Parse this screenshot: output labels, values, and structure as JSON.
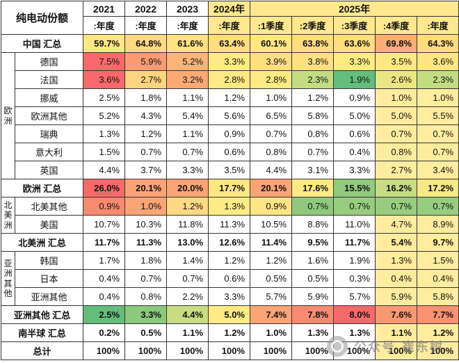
{
  "corner_label": "纯电动份额",
  "columns": {
    "year_groups": [
      {
        "label": "2021",
        "span": 1,
        "bg": "#FFFFFF"
      },
      {
        "label": "2022",
        "span": 1,
        "bg": "#FFFFFF"
      },
      {
        "label": "2023",
        "span": 1,
        "bg": "#FFFFFF"
      },
      {
        "label": "2024年",
        "span": 1,
        "bg": "#FFE88E"
      },
      {
        "label": "2025年",
        "span": 5,
        "bg": "#FFE88E"
      }
    ],
    "periods": [
      {
        "label": ":年度",
        "bg": "#FFFFFF"
      },
      {
        "label": ":年度",
        "bg": "#FFFFFF"
      },
      {
        "label": ":年度",
        "bg": "#FFFFFF"
      },
      {
        "label": ":年度",
        "bg": "#FFE88E"
      },
      {
        "label": ":1季度",
        "bg": "#FFE88E"
      },
      {
        "label": ":2季度",
        "bg": "#FFE88E"
      },
      {
        "label": ":3季度",
        "bg": "#FFE88E"
      },
      {
        "label": ":4季度",
        "bg": "#FFE88E"
      },
      {
        "label": ":年度",
        "bg": "#FFE88E"
      }
    ]
  },
  "rows": [
    {
      "kind": "summary",
      "label": "中国 汇总",
      "values": [
        "59.7%",
        "64.8%",
        "61.6%",
        "63.4%",
        "60.1%",
        "63.8%",
        "63.6%",
        "69.8%",
        "64.3%"
      ],
      "colors": [
        "#FFE783",
        "#FFD980",
        "#FFE282",
        "#FFDD81",
        "#FFE683",
        "#FFDC80",
        "#FFDD81",
        "#FBAD77",
        "#FFDB80"
      ]
    },
    {
      "kind": "country",
      "group": {
        "label": "欧洲",
        "span": 7
      },
      "label": "德国",
      "values": [
        "7.5%",
        "5.9%",
        "5.2%",
        "3.3%",
        "3.9%",
        "3.8%",
        "3.3%",
        "3.5%",
        "3.6%"
      ],
      "colors": [
        "#F8696B",
        "#FA9B73",
        "#FCB479",
        "#FFEB84",
        "#FEDE81",
        "#FEE081",
        "#FFEB84",
        "#FFE783",
        "#FFE583"
      ]
    },
    {
      "kind": "country",
      "label": "法国",
      "values": [
        "3.6%",
        "2.7%",
        "3.2%",
        "2.8%",
        "2.8%",
        "2.3%",
        "1.9%",
        "2.6%",
        "2.3%"
      ],
      "colors": [
        "#F8696B",
        "#FDD480",
        "#FBAA76",
        "#FEE983",
        "#FEE983",
        "#C3DC81",
        "#63BE7B",
        "#EBE684",
        "#C3DC81"
      ]
    },
    {
      "kind": "country",
      "label": "挪威",
      "values": [
        "2.5%",
        "1.8%",
        "1.1%",
        "1.2%",
        "1.0%",
        "1.2%",
        "0.9%",
        "1.0%",
        "1.0%"
      ],
      "colors": [
        "#FFFFFF",
        "#FFFFFF",
        "#FFFFFF",
        "#FFFFFF",
        "#FFFFFF",
        "#FFFFFF",
        "#FFFFFF",
        "#FFEC9F",
        "#FFEC9F"
      ]
    },
    {
      "kind": "country",
      "label": "欧洲其他",
      "values": [
        "5.2%",
        "4.3%",
        "5.4%",
        "5.6%",
        "6.5%",
        "5.8%",
        "5.0%",
        "5.0%",
        "5.5%"
      ],
      "colors": [
        "#FFFFFF",
        "#FFFFFF",
        "#FFFFFF",
        "#FFFFFF",
        "#FFFFFF",
        "#FFFFFF",
        "#FFFFFF",
        "#FFEC9F",
        "#FFEC9F"
      ]
    },
    {
      "kind": "country",
      "label": "瑞典",
      "values": [
        "1.3%",
        "1.2%",
        "1.1%",
        "0.9%",
        "0.7%",
        "0.8%",
        "0.6%",
        "0.7%",
        "0.7%"
      ],
      "colors": [
        "#FFFFFF",
        "#FFFFFF",
        "#FFFFFF",
        "#FFFFFF",
        "#FFFFFF",
        "#FFFFFF",
        "#FFFFFF",
        "#FFEC9F",
        "#FFEC9F"
      ]
    },
    {
      "kind": "country",
      "label": "意大利",
      "values": [
        "1.5%",
        "0.7%",
        "0.7%",
        "0.6%",
        "0.8%",
        "0.7%",
        "0.4%",
        "0.8%",
        "0.7%"
      ],
      "colors": [
        "#FFFFFF",
        "#FFFFFF",
        "#FFFFFF",
        "#FFFFFF",
        "#FFFFFF",
        "#FFFFFF",
        "#FFFFFF",
        "#FFEC9F",
        "#FFEC9F"
      ]
    },
    {
      "kind": "country",
      "label": "英国",
      "values": [
        "4.4%",
        "3.7%",
        "3.3%",
        "3.5%",
        "4.4%",
        "3.1%",
        "3.3%",
        "2.7%",
        "3.4%"
      ],
      "colors": [
        "#FFFFFF",
        "#FFFFFF",
        "#FFFFFF",
        "#FFFFFF",
        "#FFFFFF",
        "#FFFFFF",
        "#FFFFFF",
        "#FFEC9F",
        "#FFEC9F"
      ]
    },
    {
      "kind": "summary",
      "label": "欧洲 汇总",
      "values": [
        "26.0%",
        "20.1%",
        "20.0%",
        "17.7%",
        "20.1%",
        "17.6%",
        "15.5%",
        "16.2%",
        "17.2%"
      ],
      "colors": [
        "#F8696B",
        "#FBA376",
        "#FBA476",
        "#FEE683",
        "#FBA376",
        "#FEEA84",
        "#8FCA7D",
        "#C8DC81",
        "#F6EA84"
      ]
    },
    {
      "kind": "country",
      "group": {
        "label": "北美洲",
        "span": 2
      },
      "label": "北美其他",
      "values": [
        "0.9%",
        "1.0%",
        "1.2%",
        "1.3%",
        "0.9%",
        "0.7%",
        "0.7%",
        "0.7%",
        "0.7%"
      ],
      "colors": [
        "#F9896F",
        "#FBA475",
        "#FED981",
        "#FFEB84",
        "#FEE583",
        "#8FC97D",
        "#98CC7E",
        "#98CC7E",
        "#98CC7E"
      ]
    },
    {
      "kind": "country",
      "label": "美国",
      "values": [
        "10.7%",
        "10.3%",
        "11.8%",
        "11.3%",
        "10.5%",
        "8.8%",
        "11.0%",
        "4.7%",
        "8.9%"
      ],
      "colors": [
        "#FFFFFF",
        "#FFFFFF",
        "#FFFFFF",
        "#FFFFFF",
        "#FFFFFF",
        "#FFFFFF",
        "#FFFFFF",
        "#FFEC9F",
        "#FFEC9F"
      ]
    },
    {
      "kind": "summary",
      "label": "北美洲 汇总",
      "values": [
        "11.7%",
        "11.3%",
        "13.0%",
        "12.6%",
        "11.4%",
        "9.5%",
        "11.7%",
        "5.4%",
        "9.7%"
      ],
      "colors": [
        "#FFFFFF",
        "#FFFFFF",
        "#FFFFFF",
        "#FFFFFF",
        "#FFFFFF",
        "#FFFFFF",
        "#FFFFFF",
        "#FFEC9F",
        "#FFEC9F"
      ]
    },
    {
      "kind": "country",
      "group": {
        "label": "亚洲其他",
        "span": 3
      },
      "label": "韩国",
      "values": [
        "1.7%",
        "1.8%",
        "1.4%",
        "1.2%",
        "1.2%",
        "1.6%",
        "1.9%",
        "1.3%",
        "1.5%"
      ],
      "colors": [
        "#FFFFFF",
        "#FFFFFF",
        "#FFFFFF",
        "#FFFFFF",
        "#FFFFFF",
        "#FFFFFF",
        "#FFFFFF",
        "#FFEC9F",
        "#FFEC9F"
      ]
    },
    {
      "kind": "country",
      "label": "日本",
      "values": [
        "0.4%",
        "0.7%",
        "0.7%",
        "0.6%",
        "0.5%",
        "0.5%",
        "0.3%",
        "0.4%",
        "0.4%"
      ],
      "colors": [
        "#FFFFFF",
        "#FFFFFF",
        "#FFFFFF",
        "#FFFFFF",
        "#FFFFFF",
        "#FFFFFF",
        "#FFFFFF",
        "#FFEC9F",
        "#FFEC9F"
      ]
    },
    {
      "kind": "country",
      "label": "亚洲其他",
      "values": [
        "0.4%",
        "0.8%",
        "2.2%",
        "3.3%",
        "5.7%",
        "5.9%",
        "5.7%",
        "5.9%",
        "5.8%"
      ],
      "colors": [
        "#FFFFFF",
        "#FFFFFF",
        "#FFFFFF",
        "#FFFFFF",
        "#FFFFFF",
        "#FFFFFF",
        "#FFFFFF",
        "#FFEC9F",
        "#FFEC9F"
      ]
    },
    {
      "kind": "summary",
      "label": "亚洲其他 汇总",
      "values": [
        "2.5%",
        "3.3%",
        "4.4%",
        "5.0%",
        "7.4%",
        "7.8%",
        "8.0%",
        "7.6%",
        "7.7%"
      ],
      "colors": [
        "#63BE7B",
        "#8BC97D",
        "#C9DC81",
        "#FFEB84",
        "#FBA476",
        "#F98A70",
        "#F8696B",
        "#FA9773",
        "#FA9172"
      ]
    },
    {
      "kind": "summary",
      "label": "南半球 汇总",
      "values": [
        "0.2%",
        "0.5%",
        "1.1%",
        "1.2%",
        "1.0%",
        "1.3%",
        "1.3%",
        "1.1%",
        "1.2%"
      ],
      "colors": [
        "#FFFFFF",
        "#FFFFFF",
        "#FFFFFF",
        "#FFFFFF",
        "#FFFFFF",
        "#FFFFFF",
        "#FFFFFF",
        "#FFEC9F",
        "#FFEC9F"
      ]
    },
    {
      "kind": "summary",
      "label": "总计",
      "values": [
        "100%",
        "100%",
        "100%",
        "100%",
        "100%",
        "100%",
        "100%",
        "100%",
        "100%"
      ],
      "colors": [
        "#FFFFFF",
        "#FFFFFF",
        "#FFFFFF",
        "#FFFFFF",
        "#FFFFFF",
        "#FFFFFF",
        "#FFFFFF",
        "#FFEC9F",
        "#FFEC9F"
      ]
    }
  ],
  "watermark": {
    "label": "公众号",
    "name": "崔东树"
  },
  "palette": {
    "scale_high": "#F8696B",
    "scale_mid": "#FFEB84",
    "scale_low": "#63BE7B",
    "header_highlight": "#FFE88E",
    "period_highlight": "#FFEC9F"
  },
  "chart_data": {
    "type": "table",
    "title": "纯电动份额",
    "unit": "%",
    "columns": [
      "2021:年度",
      "2022:年度",
      "2023:年度",
      "2024年:年度",
      "2025年:1季度",
      "2025年:2季度",
      "2025年:3季度",
      "2025年:4季度",
      "2025年:年度"
    ],
    "rows": [
      {
        "group": "",
        "name": "中国 汇总",
        "values": [
          59.7,
          64.8,
          61.6,
          63.4,
          60.1,
          63.8,
          63.6,
          69.8,
          64.3
        ]
      },
      {
        "group": "欧洲",
        "name": "德国",
        "values": [
          7.5,
          5.9,
          5.2,
          3.3,
          3.9,
          3.8,
          3.3,
          3.5,
          3.6
        ]
      },
      {
        "group": "欧洲",
        "name": "法国",
        "values": [
          3.6,
          2.7,
          3.2,
          2.8,
          2.8,
          2.3,
          1.9,
          2.6,
          2.3
        ]
      },
      {
        "group": "欧洲",
        "name": "挪威",
        "values": [
          2.5,
          1.8,
          1.1,
          1.2,
          1.0,
          1.2,
          0.9,
          1.0,
          1.0
        ]
      },
      {
        "group": "欧洲",
        "name": "欧洲其他",
        "values": [
          5.2,
          4.3,
          5.4,
          5.6,
          6.5,
          5.8,
          5.0,
          5.0,
          5.5
        ]
      },
      {
        "group": "欧洲",
        "name": "瑞典",
        "values": [
          1.3,
          1.2,
          1.1,
          0.9,
          0.7,
          0.8,
          0.6,
          0.7,
          0.7
        ]
      },
      {
        "group": "欧洲",
        "name": "意大利",
        "values": [
          1.5,
          0.7,
          0.7,
          0.6,
          0.8,
          0.7,
          0.4,
          0.8,
          0.7
        ]
      },
      {
        "group": "欧洲",
        "name": "英国",
        "values": [
          4.4,
          3.7,
          3.3,
          3.5,
          4.4,
          3.1,
          3.3,
          2.7,
          3.4
        ]
      },
      {
        "group": "",
        "name": "欧洲 汇总",
        "values": [
          26.0,
          20.1,
          20.0,
          17.7,
          20.1,
          17.6,
          15.5,
          16.2,
          17.2
        ]
      },
      {
        "group": "北美洲",
        "name": "北美其他",
        "values": [
          0.9,
          1.0,
          1.2,
          1.3,
          0.9,
          0.7,
          0.7,
          0.7,
          0.7
        ]
      },
      {
        "group": "北美洲",
        "name": "美国",
        "values": [
          10.7,
          10.3,
          11.8,
          11.3,
          10.5,
          8.8,
          11.0,
          4.7,
          8.9
        ]
      },
      {
        "group": "",
        "name": "北美洲 汇总",
        "values": [
          11.7,
          11.3,
          13.0,
          12.6,
          11.4,
          9.5,
          11.7,
          5.4,
          9.7
        ]
      },
      {
        "group": "亚洲其他",
        "name": "韩国",
        "values": [
          1.7,
          1.8,
          1.4,
          1.2,
          1.2,
          1.6,
          1.9,
          1.3,
          1.5
        ]
      },
      {
        "group": "亚洲其他",
        "name": "日本",
        "values": [
          0.4,
          0.7,
          0.7,
          0.6,
          0.5,
          0.5,
          0.3,
          0.4,
          0.4
        ]
      },
      {
        "group": "亚洲其他",
        "name": "亚洲其他",
        "values": [
          0.4,
          0.8,
          2.2,
          3.3,
          5.7,
          5.9,
          5.7,
          5.9,
          5.8
        ]
      },
      {
        "group": "",
        "name": "亚洲其他 汇总",
        "values": [
          2.5,
          3.3,
          4.4,
          5.0,
          7.4,
          7.8,
          8.0,
          7.6,
          7.7
        ]
      },
      {
        "group": "",
        "name": "南半球 汇总",
        "values": [
          0.2,
          0.5,
          1.1,
          1.2,
          1.0,
          1.3,
          1.3,
          1.1,
          1.2
        ]
      },
      {
        "group": "",
        "name": "总计",
        "values": [
          100,
          100,
          100,
          100,
          100,
          100,
          100,
          100,
          100
        ]
      }
    ]
  }
}
